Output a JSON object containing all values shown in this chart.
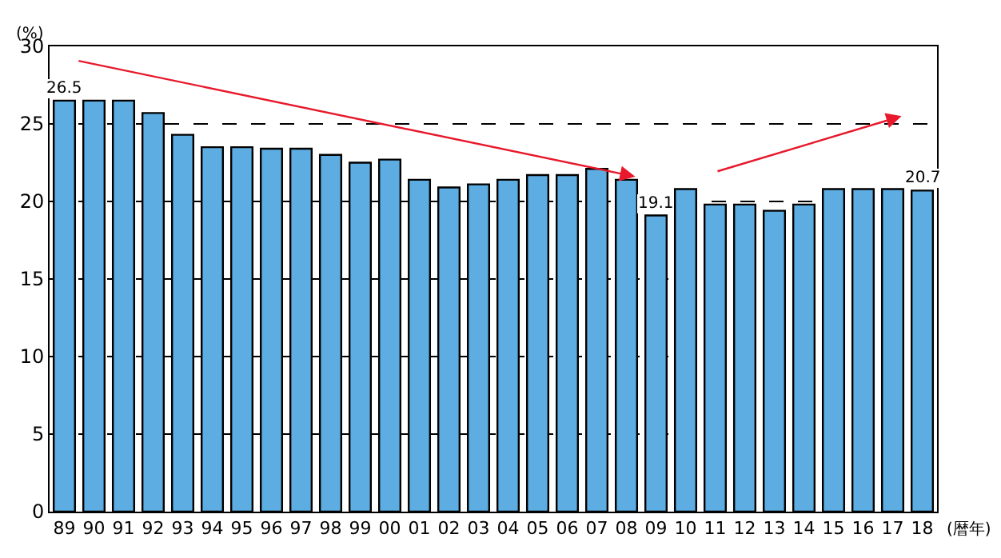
{
  "chart_data": {
    "type": "bar",
    "ylabel": "(%)",
    "xlabel": "(暦年)",
    "categories": [
      "89",
      "90",
      "91",
      "92",
      "93",
      "94",
      "95",
      "96",
      "97",
      "98",
      "99",
      "00",
      "01",
      "02",
      "03",
      "04",
      "05",
      "06",
      "07",
      "08",
      "09",
      "10",
      "11",
      "12",
      "13",
      "14",
      "15",
      "16",
      "17",
      "18"
    ],
    "values": [
      26.5,
      26.5,
      26.5,
      25.7,
      24.3,
      23.5,
      23.5,
      23.4,
      23.4,
      23.0,
      22.5,
      22.7,
      21.4,
      20.9,
      21.1,
      21.4,
      21.7,
      21.7,
      22.1,
      21.4,
      19.1,
      20.8,
      19.8,
      19.8,
      19.4,
      19.8,
      20.8,
      20.8,
      20.8,
      20.7
    ],
    "value_labels": [
      "26.5",
      null,
      null,
      null,
      null,
      null,
      null,
      null,
      null,
      null,
      null,
      null,
      null,
      null,
      null,
      null,
      null,
      null,
      null,
      null,
      "19.1",
      null,
      null,
      null,
      null,
      null,
      null,
      null,
      null,
      "20.7"
    ],
    "color": "#5dade2",
    "ylim": [
      0,
      30
    ],
    "yticks": [
      0,
      5,
      10,
      15,
      20,
      25,
      30
    ],
    "grid": "y"
  }
}
